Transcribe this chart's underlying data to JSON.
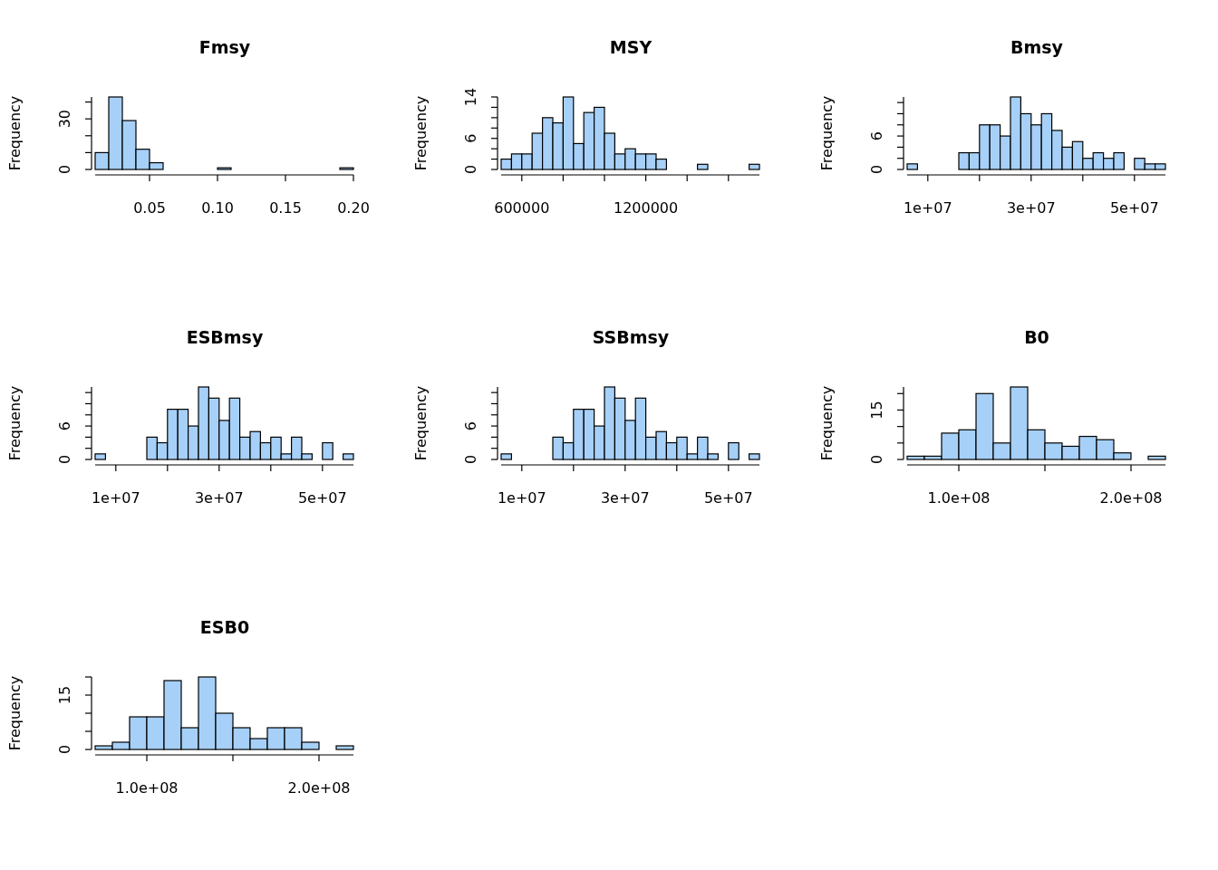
{
  "chart_data": [
    {
      "type": "histogram",
      "title": "Fmsy",
      "ylabel": "Frequency",
      "color": "#a6d0f8",
      "bins": [
        0.01,
        0.02,
        0.03,
        0.04,
        0.05,
        0.06,
        0.07,
        0.08,
        0.09,
        0.1,
        0.11,
        0.12,
        0.13,
        0.14,
        0.15,
        0.16,
        0.17,
        0.18,
        0.19,
        0.2
      ],
      "values": [
        10,
        43,
        29,
        12,
        4,
        0,
        0,
        0,
        0,
        1,
        0,
        0,
        0,
        0,
        0,
        0,
        0,
        0,
        1
      ],
      "xlim": [
        0.01,
        0.2
      ],
      "ylim": [
        0,
        43
      ],
      "xticks": [
        0.05,
        {
          "value": 0.1,
          "label": "0.10"
        },
        0.15,
        {
          "value": 0.2,
          "label": "0.20"
        }
      ],
      "yticks": [
        0,
        {
          "value": 10,
          "label": null
        },
        {
          "value": 20,
          "label": null
        },
        30,
        {
          "value": 40,
          "label": null
        }
      ]
    },
    {
      "type": "histogram",
      "title": "MSY",
      "ylabel": "Frequency",
      "color": "#a6d0f8",
      "bins": [
        500000,
        550000,
        600000,
        650000,
        700000,
        750000,
        800000,
        850000,
        900000,
        950000,
        1000000,
        1050000,
        1100000,
        1150000,
        1200000,
        1250000,
        1300000,
        1350000,
        1400000,
        1450000,
        1500000,
        1550000,
        1600000,
        1650000,
        1700000,
        1750000
      ],
      "values": [
        2,
        3,
        3,
        7,
        10,
        9,
        14,
        5,
        11,
        12,
        7,
        3,
        4,
        3,
        3,
        2,
        0,
        0,
        0,
        1,
        0,
        0,
        0,
        0,
        1
      ],
      "xlim": [
        500000,
        1750000
      ],
      "ylim": [
        0,
        14
      ],
      "xticks": [
        600000,
        {
          "value": 800000,
          "label": null
        },
        {
          "value": 1000000,
          "label": null
        },
        1200000,
        {
          "value": 1400000,
          "label": null
        },
        {
          "value": 1600000,
          "label": null
        }
      ],
      "yticks": [
        0,
        {
          "value": 2,
          "label": null
        },
        {
          "value": 4,
          "label": null
        },
        6,
        {
          "value": 8,
          "label": null
        },
        {
          "value": 10,
          "label": null
        },
        {
          "value": 12,
          "label": null
        },
        14
      ]
    },
    {
      "type": "histogram",
      "title": "Bmsy",
      "ylabel": "Frequency",
      "color": "#a6d0f8",
      "bins": [
        6000000,
        8000000,
        10000000,
        12000000,
        14000000,
        16000000,
        18000000,
        20000000,
        22000000,
        24000000,
        26000000,
        28000000,
        30000000,
        32000000,
        34000000,
        36000000,
        38000000,
        40000000,
        42000000,
        44000000,
        46000000,
        48000000,
        50000000,
        52000000,
        54000000,
        56000000
      ],
      "values": [
        1,
        0,
        0,
        0,
        0,
        3,
        3,
        8,
        8,
        6,
        13,
        10,
        8,
        10,
        7,
        4,
        5,
        2,
        3,
        2,
        3,
        0,
        2,
        1,
        1
      ],
      "xlim": [
        6000000,
        56000000
      ],
      "ylim": [
        0,
        13
      ],
      "xticks": [
        {
          "value": 10000000,
          "label": "1e+07"
        },
        {
          "value": 20000000,
          "label": null
        },
        {
          "value": 30000000,
          "label": "3e+07"
        },
        {
          "value": 40000000,
          "label": null
        },
        {
          "value": 50000000,
          "label": "5e+07"
        }
      ],
      "yticks": [
        0,
        {
          "value": 2,
          "label": null
        },
        {
          "value": 4,
          "label": null
        },
        6,
        {
          "value": 8,
          "label": null
        },
        {
          "value": 10,
          "label": null
        },
        {
          "value": 12,
          "label": null
        }
      ]
    },
    {
      "type": "histogram",
      "title": "ESBmsy",
      "ylabel": "Frequency",
      "color": "#a6d0f8",
      "bins": [
        6000000,
        8000000,
        10000000,
        12000000,
        14000000,
        16000000,
        18000000,
        20000000,
        22000000,
        24000000,
        26000000,
        28000000,
        30000000,
        32000000,
        34000000,
        36000000,
        38000000,
        40000000,
        42000000,
        44000000,
        46000000,
        48000000,
        50000000,
        52000000,
        54000000,
        56000000
      ],
      "values": [
        1,
        0,
        0,
        0,
        0,
        4,
        3,
        9,
        9,
        6,
        13,
        11,
        7,
        11,
        4,
        5,
        3,
        4,
        1,
        4,
        1,
        0,
        3,
        0,
        1
      ],
      "xlim": [
        6000000,
        56000000
      ],
      "ylim": [
        0,
        13
      ],
      "xticks": [
        {
          "value": 10000000,
          "label": "1e+07"
        },
        {
          "value": 20000000,
          "label": null
        },
        {
          "value": 30000000,
          "label": "3e+07"
        },
        {
          "value": 40000000,
          "label": null
        },
        {
          "value": 50000000,
          "label": "5e+07"
        }
      ],
      "yticks": [
        0,
        {
          "value": 2,
          "label": null
        },
        {
          "value": 4,
          "label": null
        },
        6,
        {
          "value": 8,
          "label": null
        },
        {
          "value": 10,
          "label": null
        },
        {
          "value": 12,
          "label": null
        }
      ]
    },
    {
      "type": "histogram",
      "title": "SSBmsy",
      "ylabel": "Frequency",
      "color": "#a6d0f8",
      "bins": [
        6000000,
        8000000,
        10000000,
        12000000,
        14000000,
        16000000,
        18000000,
        20000000,
        22000000,
        24000000,
        26000000,
        28000000,
        30000000,
        32000000,
        34000000,
        36000000,
        38000000,
        40000000,
        42000000,
        44000000,
        46000000,
        48000000,
        50000000,
        52000000,
        54000000,
        56000000
      ],
      "values": [
        1,
        0,
        0,
        0,
        0,
        4,
        3,
        9,
        9,
        6,
        13,
        11,
        7,
        11,
        4,
        5,
        3,
        4,
        1,
        4,
        1,
        0,
        3,
        0,
        1
      ],
      "xlim": [
        6000000,
        56000000
      ],
      "ylim": [
        0,
        13
      ],
      "xticks": [
        {
          "value": 10000000,
          "label": "1e+07"
        },
        {
          "value": 20000000,
          "label": null
        },
        {
          "value": 30000000,
          "label": "3e+07"
        },
        {
          "value": 40000000,
          "label": null
        },
        {
          "value": 50000000,
          "label": "5e+07"
        }
      ],
      "yticks": [
        0,
        {
          "value": 2,
          "label": null
        },
        {
          "value": 4,
          "label": null
        },
        6,
        {
          "value": 8,
          "label": null
        },
        {
          "value": 10,
          "label": null
        },
        {
          "value": 12,
          "label": null
        }
      ]
    },
    {
      "type": "histogram",
      "title": "B0",
      "ylabel": "Frequency",
      "color": "#a6d0f8",
      "bins": [
        70000000,
        80000000,
        90000000,
        100000000,
        110000000,
        120000000,
        130000000,
        140000000,
        150000000,
        160000000,
        170000000,
        180000000,
        190000000,
        200000000,
        210000000,
        220000000
      ],
      "values": [
        1,
        1,
        8,
        9,
        20,
        5,
        22,
        9,
        5,
        4,
        7,
        6,
        2,
        0,
        1
      ],
      "xlim": [
        70000000,
        220000000
      ],
      "ylim": [
        0,
        22
      ],
      "xticks": [
        {
          "value": 100000000,
          "label": "1.0e+08"
        },
        {
          "value": 150000000,
          "label": null
        },
        {
          "value": 200000000,
          "label": "2.0e+08"
        }
      ],
      "yticks": [
        0,
        {
          "value": 5,
          "label": null
        },
        {
          "value": 10,
          "label": null
        },
        15,
        {
          "value": 20,
          "label": null
        }
      ]
    },
    {
      "type": "histogram",
      "title": "ESB0",
      "ylabel": "Frequency",
      "color": "#a6d0f8",
      "bins": [
        70000000,
        80000000,
        90000000,
        100000000,
        110000000,
        120000000,
        130000000,
        140000000,
        150000000,
        160000000,
        170000000,
        180000000,
        190000000,
        200000000,
        210000000,
        220000000
      ],
      "values": [
        1,
        2,
        9,
        9,
        19,
        6,
        20,
        10,
        6,
        3,
        6,
        6,
        2,
        0,
        1
      ],
      "xlim": [
        70000000,
        220000000
      ],
      "ylim": [
        0,
        20
      ],
      "xticks": [
        {
          "value": 100000000,
          "label": "1.0e+08"
        },
        {
          "value": 150000000,
          "label": null
        },
        {
          "value": 200000000,
          "label": "2.0e+08"
        }
      ],
      "yticks": [
        0,
        {
          "value": 5,
          "label": null
        },
        {
          "value": 10,
          "label": null
        },
        15,
        {
          "value": 20,
          "label": null
        }
      ]
    }
  ]
}
